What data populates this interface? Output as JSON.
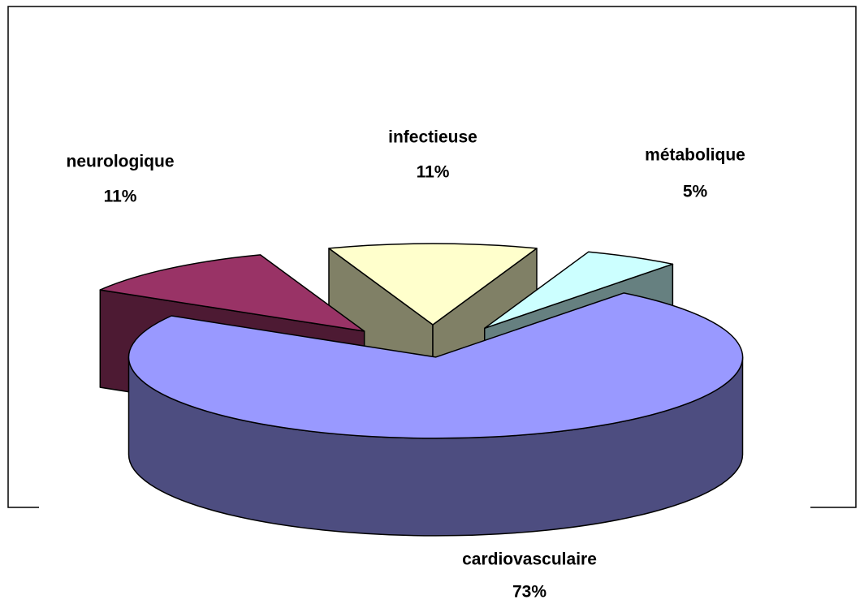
{
  "chart_data": {
    "type": "pie3d",
    "categories": [
      "cardiovasculaire",
      "neurologique",
      "infectieuse",
      "métabolique"
    ],
    "values": [
      73,
      11,
      11,
      5
    ],
    "value_labels": [
      "73%",
      "11%",
      "11%",
      "5%"
    ],
    "colors": [
      "#9999ff",
      "#993366",
      "#ffffcc",
      "#ccffff"
    ]
  }
}
